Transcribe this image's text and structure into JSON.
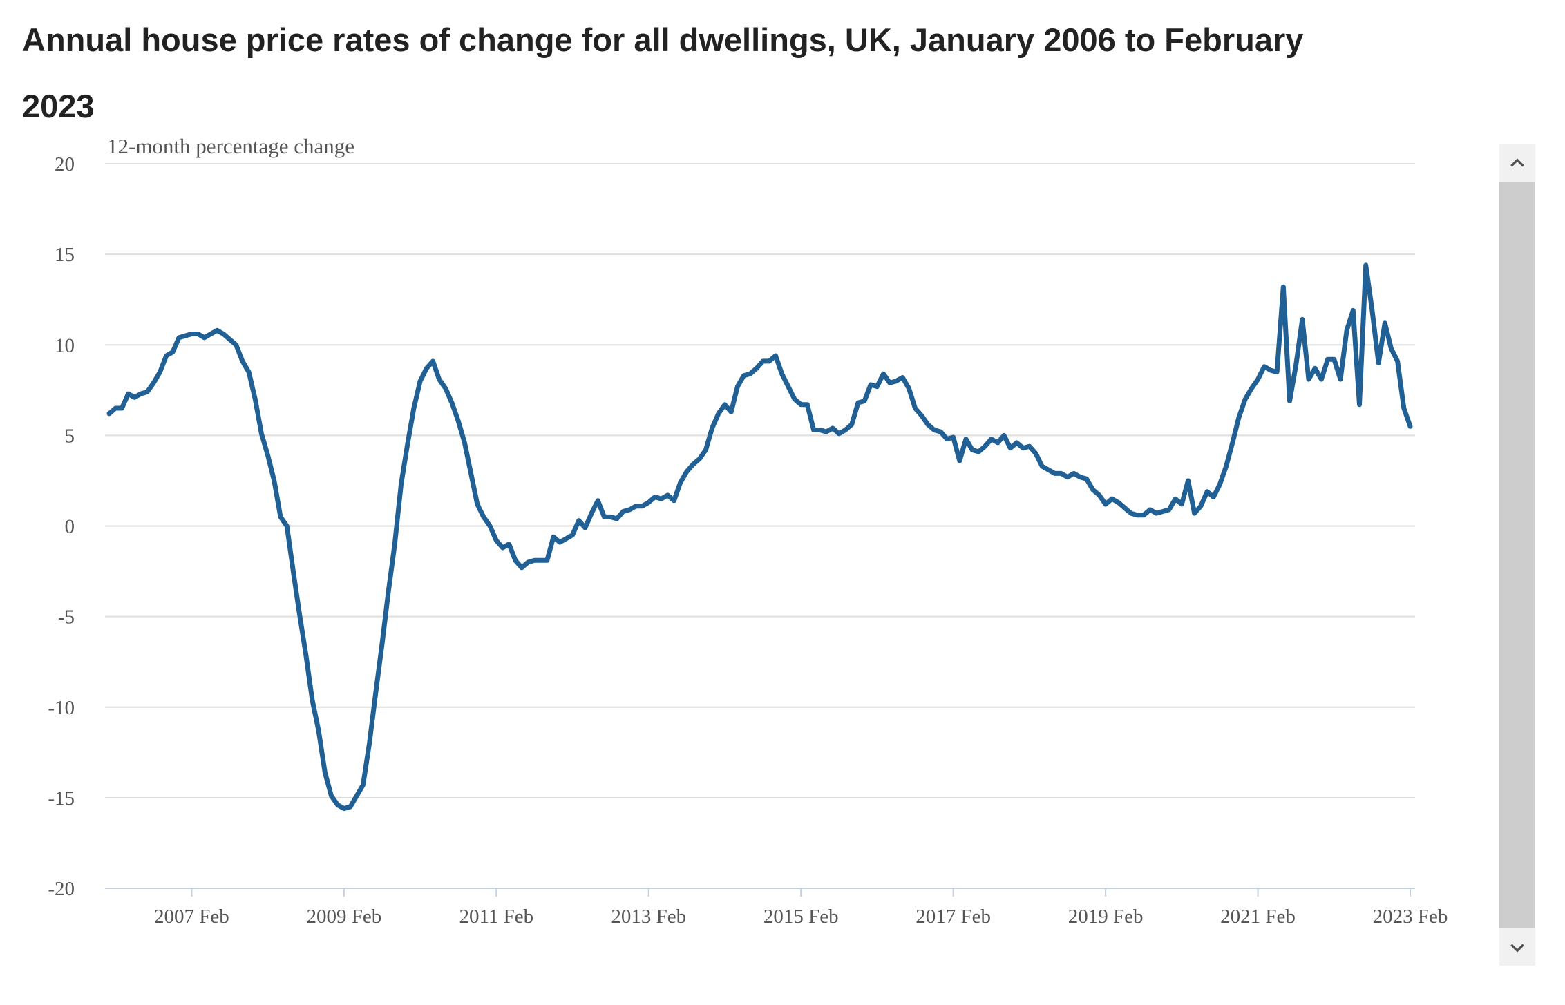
{
  "chart_data": {
    "type": "line",
    "title": "Annual house price rates of change for all dwellings, UK, January 2006 to February 2023",
    "ylabel": "12-month percentage change",
    "xlabel": "",
    "ylim": [
      -20,
      20
    ],
    "yticks": [
      20,
      15,
      10,
      5,
      0,
      -5,
      -10,
      -15,
      -20
    ],
    "xticks": [
      "2007 Feb",
      "2009 Feb",
      "2011 Feb",
      "2013 Feb",
      "2015 Feb",
      "2017 Feb",
      "2019 Feb",
      "2021 Feb",
      "2023 Feb"
    ],
    "grid": true,
    "legend": "none",
    "color": "#206095",
    "series": [
      {
        "x_start": "2006 Jan",
        "values": [
          6.2,
          6.5,
          6.5,
          7.3,
          7.1,
          7.3,
          7.4,
          7.9,
          8.5,
          9.4,
          9.6,
          10.4,
          10.5,
          10.6,
          10.6,
          10.4,
          10.6,
          10.8,
          10.6,
          10.3,
          10.0,
          9.1,
          8.5,
          7.0,
          5.1,
          3.9,
          2.5,
          0.5,
          0.0,
          -2.5,
          -4.9,
          -7.1,
          -9.6,
          -11.3,
          -13.6,
          -14.9,
          -15.4,
          -15.6,
          -15.5,
          -14.9,
          -14.3,
          -12.0,
          -9.2,
          -6.5,
          -3.6,
          -1.0,
          2.3,
          4.5,
          6.5,
          8.0,
          8.7,
          9.1,
          8.1,
          7.6,
          6.8,
          5.8,
          4.6,
          2.9,
          1.2,
          0.5,
          0.0,
          -0.8,
          -1.2,
          -1.0,
          -1.9,
          -2.3,
          -2.0,
          -1.9,
          -1.9,
          -1.9,
          -0.6,
          -0.9,
          -0.7,
          -0.5,
          0.3,
          -0.1,
          0.7,
          1.4,
          0.5,
          0.5,
          0.4,
          0.8,
          0.9,
          1.1,
          1.1,
          1.3,
          1.6,
          1.5,
          1.7,
          1.4,
          2.4,
          3.0,
          3.4,
          3.7,
          4.2,
          5.4,
          6.2,
          6.7,
          6.3,
          7.7,
          8.3,
          8.4,
          8.7,
          9.1,
          9.1,
          9.4,
          8.4,
          7.7,
          7.0,
          6.7,
          6.7,
          5.3,
          5.3,
          5.2,
          5.4,
          5.1,
          5.3,
          5.6,
          6.8,
          6.9,
          7.8,
          7.7,
          8.4,
          7.9,
          8.0,
          8.2,
          7.6,
          6.5,
          6.1,
          5.6,
          5.3,
          5.2,
          4.8,
          4.9,
          3.6,
          4.8,
          4.2,
          4.1,
          4.4,
          4.8,
          4.6,
          5.0,
          4.3,
          4.6,
          4.3,
          4.4,
          4.0,
          3.3,
          3.1,
          2.9,
          2.9,
          2.7,
          2.9,
          2.7,
          2.6,
          2.0,
          1.7,
          1.2,
          1.5,
          1.3,
          1.0,
          0.7,
          0.6,
          0.6,
          0.9,
          0.7,
          0.8,
          0.9,
          1.5,
          1.2,
          2.5,
          0.7,
          1.1,
          1.9,
          1.6,
          2.3,
          3.3,
          4.6,
          6.0,
          7.0,
          7.6,
          8.1,
          8.8,
          8.6,
          8.5,
          13.2,
          6.9,
          8.9,
          11.4,
          8.1,
          8.7,
          8.1,
          9.2,
          9.2,
          8.1,
          10.8,
          11.9,
          6.7,
          14.4,
          11.9,
          9.0,
          11.2,
          9.8,
          9.1,
          6.5,
          5.5
        ]
      }
    ]
  },
  "scrollbar": {
    "up_icon": "chevron-up-icon",
    "down_icon": "chevron-down-icon",
    "track_color": "#f1f1f1",
    "thumb_color": "#cdcdcd"
  }
}
